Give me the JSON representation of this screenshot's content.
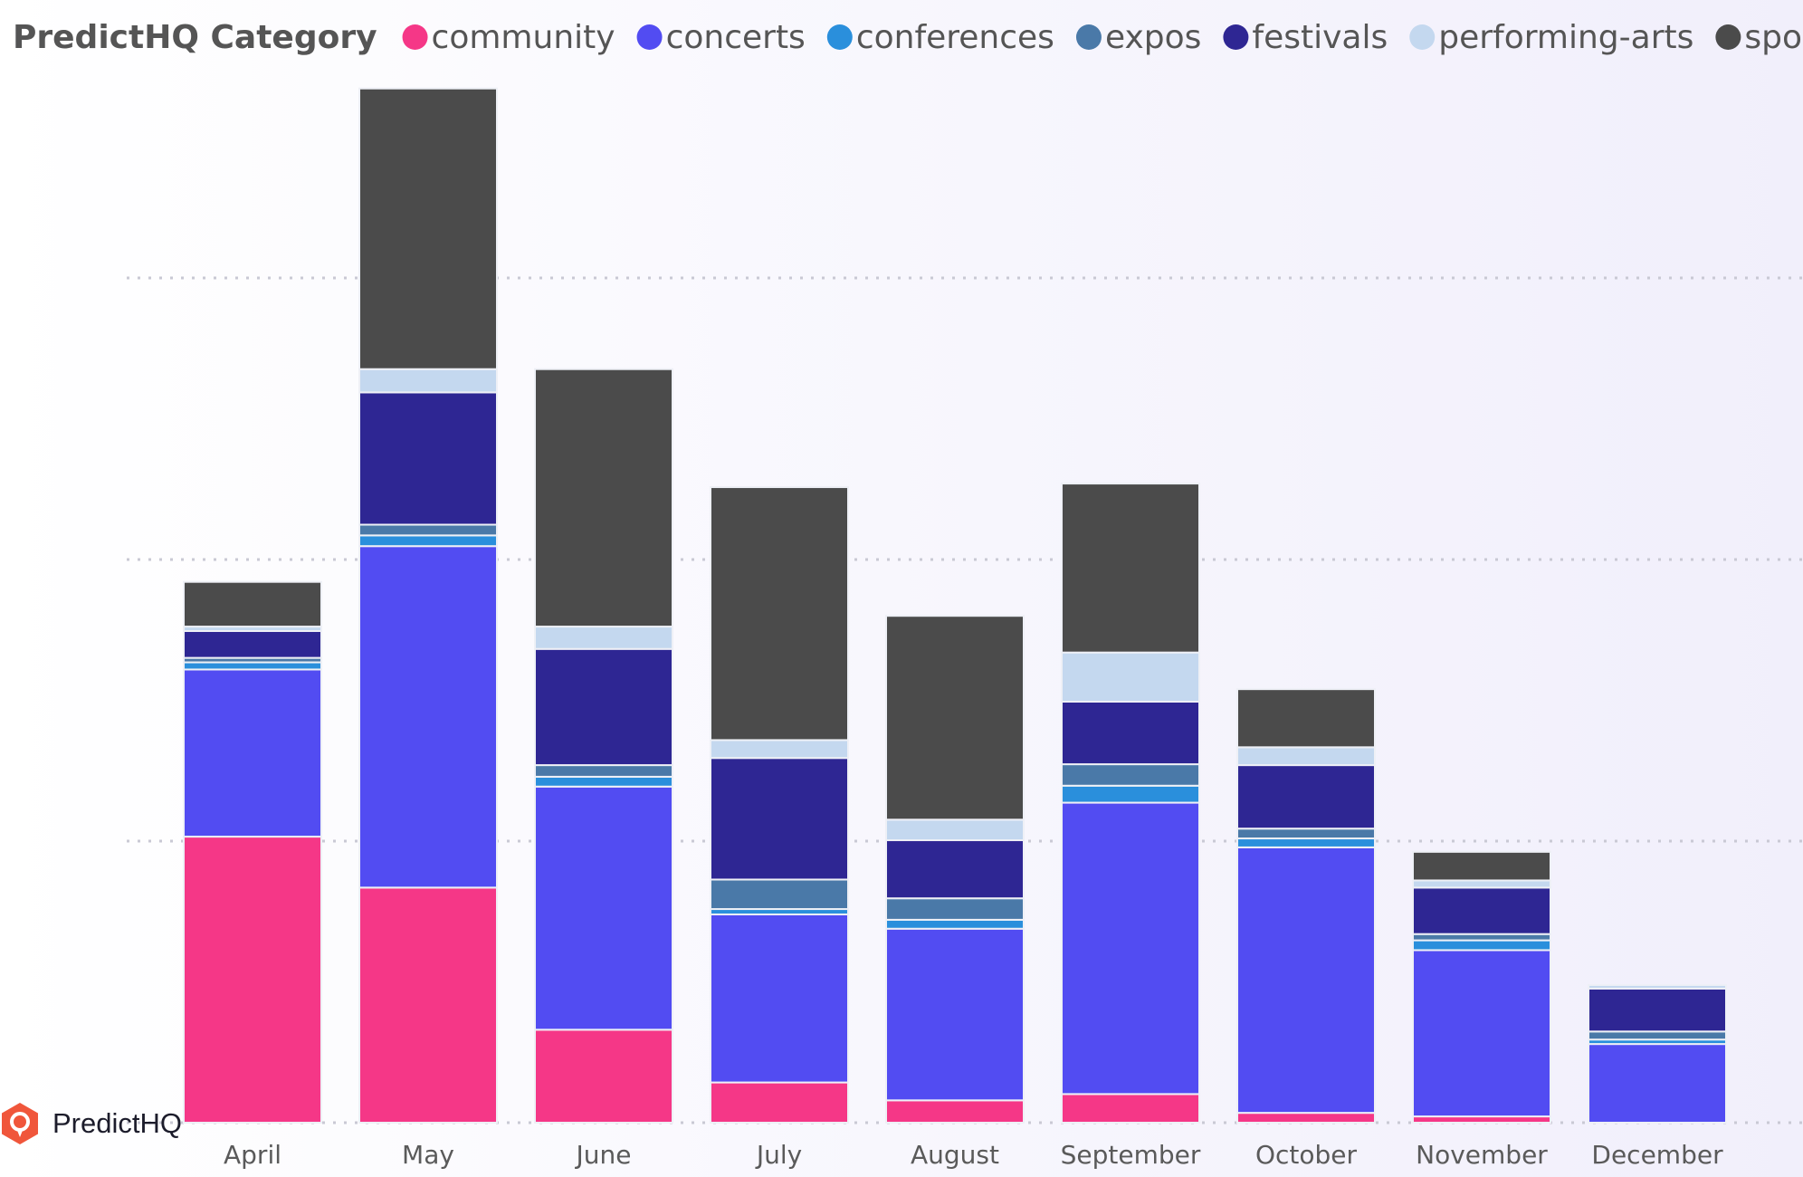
{
  "brand": {
    "name": "PredictHQ"
  },
  "chart_data": {
    "type": "bar",
    "stacked": true,
    "legend": {
      "title": "PredictHQ Category",
      "position": "top-left"
    },
    "categories": [
      "April",
      "May",
      "June",
      "July",
      "August",
      "September",
      "October",
      "November",
      "December"
    ],
    "ylim": [
      0,
      1180
    ],
    "gridlines": [
      315,
      630,
      945
    ],
    "series": [
      {
        "name": "community",
        "color": "#f53787",
        "values": [
          320,
          263,
          104,
          45,
          25,
          32,
          11,
          7,
          0
        ]
      },
      {
        "name": "concerts",
        "color": "#524cf2",
        "values": [
          187,
          382,
          272,
          188,
          192,
          326,
          297,
          186,
          88
        ]
      },
      {
        "name": "conferences",
        "color": "#2a8fdc",
        "values": [
          8,
          12,
          11,
          6,
          10,
          19,
          10,
          11,
          5
        ]
      },
      {
        "name": "expos",
        "color": "#4a79a8",
        "values": [
          5,
          12,
          13,
          33,
          24,
          24,
          11,
          7,
          9
        ]
      },
      {
        "name": "festivals",
        "color": "#2e2693",
        "values": [
          30,
          148,
          130,
          136,
          65,
          70,
          71,
          52,
          48
        ]
      },
      {
        "name": "performing-arts",
        "color": "#c4d8ef",
        "values": [
          5,
          26,
          25,
          20,
          23,
          55,
          20,
          8,
          4
        ]
      },
      {
        "name": "sports",
        "color": "#4b4b4b",
        "values": [
          50,
          314,
          288,
          283,
          228,
          189,
          65,
          32,
          0
        ]
      }
    ]
  }
}
